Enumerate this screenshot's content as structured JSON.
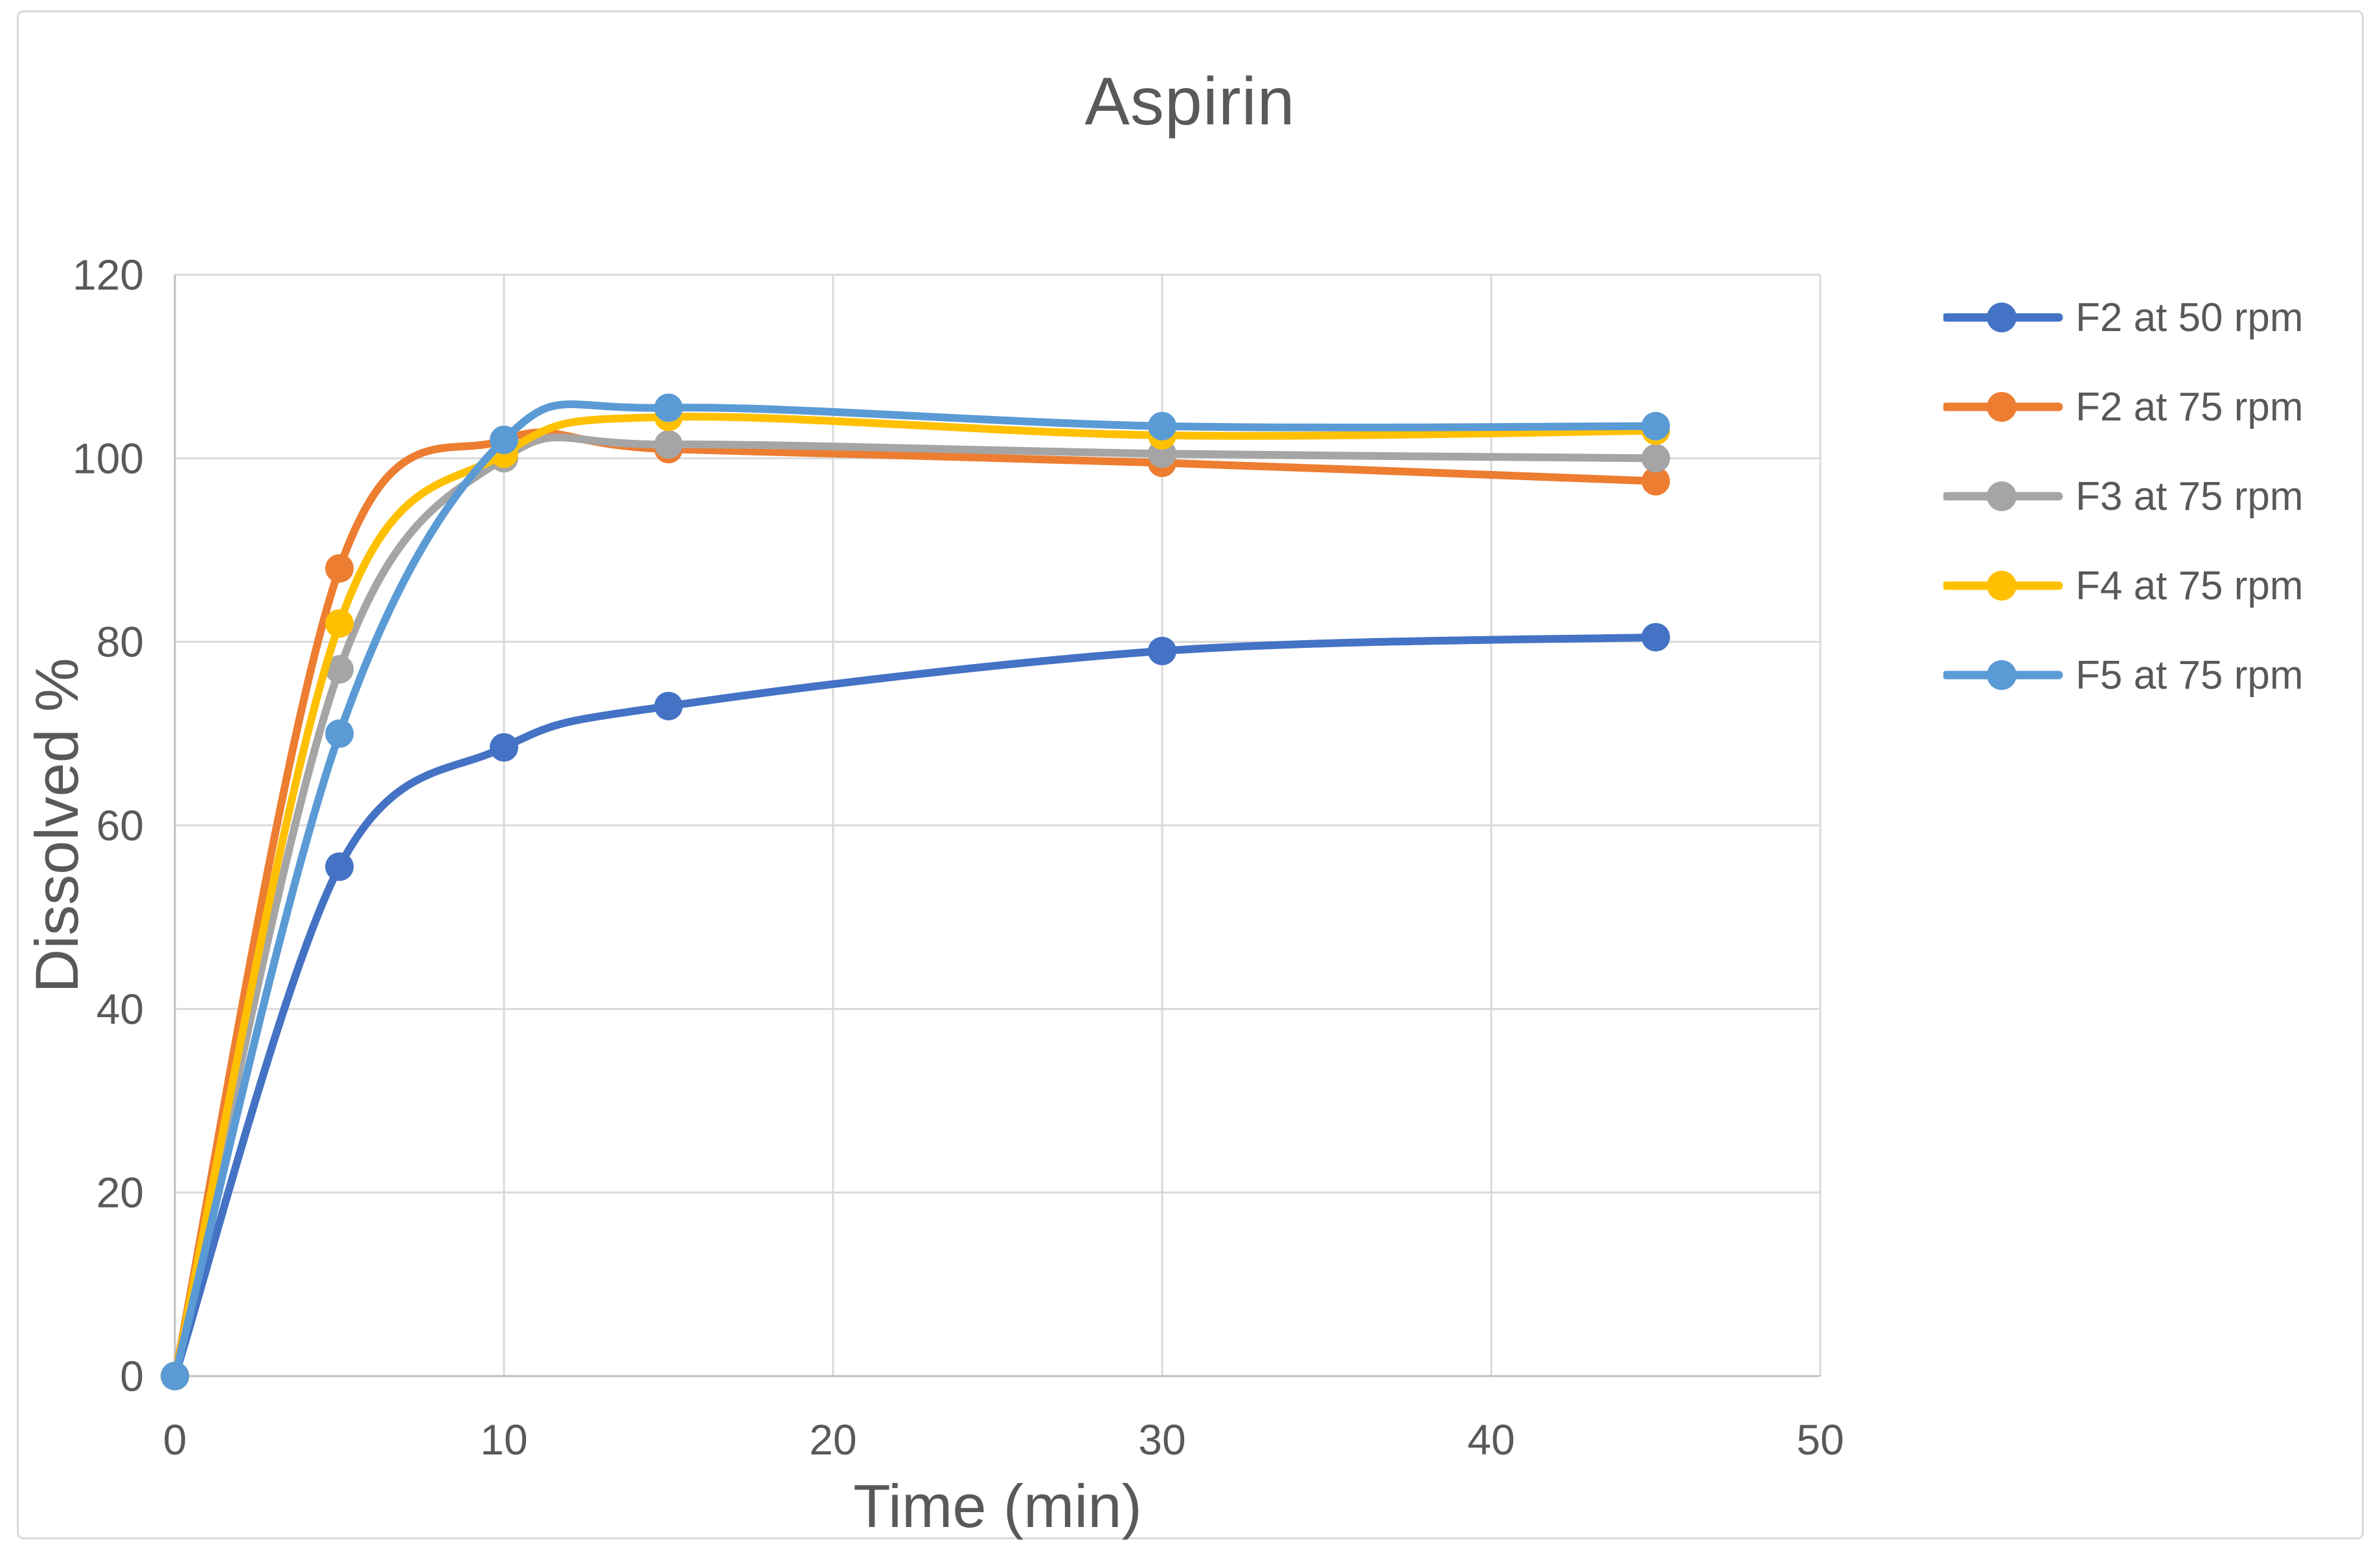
{
  "title": "Aspirin",
  "styles": {
    "text_color": "#595959",
    "grid_color": "#D9D9D9",
    "axis_color": "#BFBFBF",
    "border_color": "#D9D9D9",
    "background": "#FFFFFF"
  },
  "chart_data": {
    "type": "line",
    "title": "Aspirin",
    "xlabel": "Time (min)",
    "ylabel": "Dissolved %",
    "x": [
      0,
      5,
      10,
      15,
      30,
      45
    ],
    "series": [
      {
        "name": "F2 at 50 rpm",
        "color": "#4472C4",
        "values": [
          0,
          55.5,
          68.5,
          73,
          79,
          80.5
        ]
      },
      {
        "name": "F2 at 75 rpm",
        "color": "#ED7D31",
        "values": [
          0,
          88,
          102,
          101,
          99.5,
          97.5
        ]
      },
      {
        "name": "F3 at 75 rpm",
        "color": "#A5A5A5",
        "values": [
          0,
          77,
          100,
          101.5,
          100.5,
          100
        ]
      },
      {
        "name": "F4 at 75 rpm",
        "color": "#FFC000",
        "values": [
          0,
          82,
          100.5,
          104.5,
          102.5,
          103
        ]
      },
      {
        "name": "F5 at 75 rpm",
        "color": "#5B9BD5",
        "values": [
          0,
          70,
          102,
          105.5,
          103.5,
          103.5
        ]
      }
    ],
    "x_ticks": [
      0,
      10,
      20,
      30,
      40,
      50
    ],
    "y_ticks": [
      0,
      20,
      40,
      60,
      80,
      100,
      120
    ],
    "xlim": [
      0,
      50
    ],
    "ylim": [
      0,
      120
    ],
    "grid": true,
    "smooth": true,
    "marker": "circle",
    "legend_position": "right"
  }
}
